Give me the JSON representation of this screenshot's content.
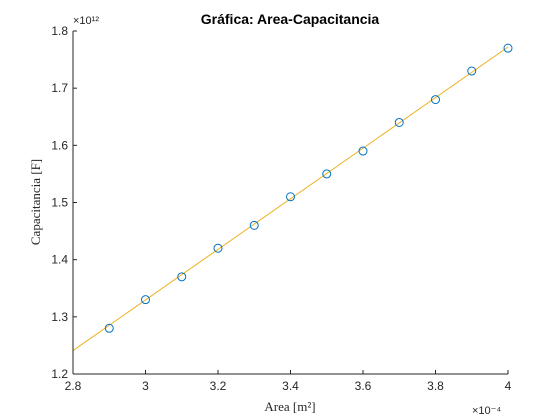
{
  "chart_data": {
    "type": "scatter",
    "title": "Gráfica: Area-Capacitancia",
    "xlabel": "Area [m²]",
    "ylabel": "Capacitancia [F]",
    "x_multiplier_label": "×10⁻⁴",
    "y_multiplier_label": "×10¹²",
    "xlim": [
      2.8,
      4.0
    ],
    "ylim": [
      1.2,
      1.8
    ],
    "x_ticks": [
      "2.8",
      "3",
      "3.2",
      "3.4",
      "3.6",
      "3.8",
      "4"
    ],
    "y_ticks": [
      "1.2",
      "1.3",
      "1.4",
      "1.5",
      "1.6",
      "1.7",
      "1.8"
    ],
    "grid": false,
    "series": [
      {
        "marker": "circle",
        "color": "#0072BD",
        "x": [
          2.9,
          3.0,
          3.1,
          3.2,
          3.3,
          3.4,
          3.5,
          3.6,
          3.7,
          3.8,
          3.9,
          4.0
        ],
        "y": [
          1.28,
          1.33,
          1.37,
          1.42,
          1.46,
          1.51,
          1.55,
          1.59,
          1.64,
          1.68,
          1.73,
          1.77
        ]
      }
    ],
    "fit_line": {
      "color": "#EDB120",
      "x": [
        2.8,
        4.0
      ],
      "y": [
        1.241,
        1.772
      ]
    }
  }
}
